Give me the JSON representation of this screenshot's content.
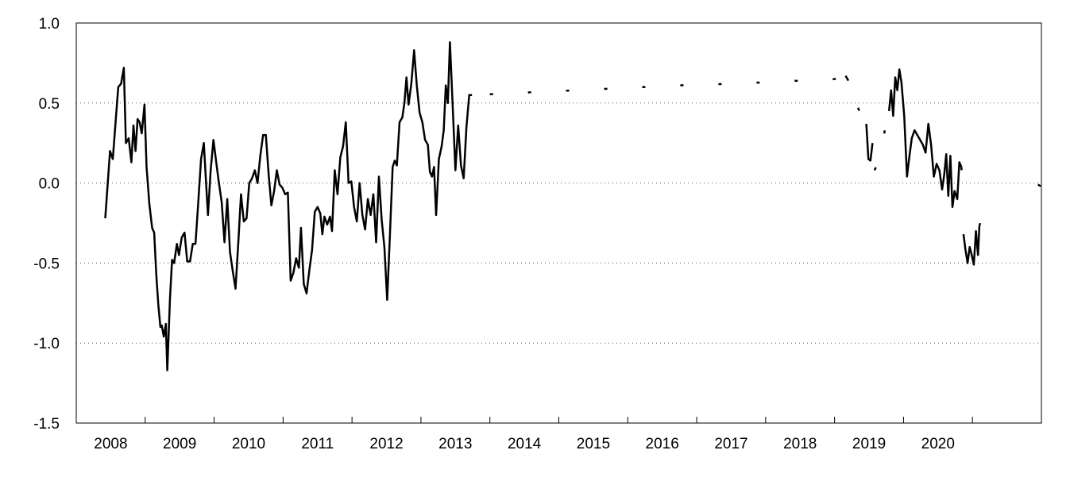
{
  "chart_data": {
    "type": "line",
    "title": "",
    "xlabel": "",
    "ylabel": "",
    "ylim": [
      -1.5,
      1.0
    ],
    "y_ticks": [
      "1.0",
      "0.5",
      "0.0",
      "-0.5",
      "-1.0",
      "-1.5"
    ],
    "y_tick_values": [
      1.0,
      0.5,
      0.0,
      -0.5,
      -1.0,
      -1.5
    ],
    "x_categories": [
      "2008",
      "2009",
      "2010",
      "2011",
      "2012",
      "2013",
      "2014",
      "2015",
      "2016",
      "2017",
      "2018",
      "2019",
      "2020"
    ],
    "xlim": [
      2007.5,
      2021.5
    ],
    "grid": "horizontal-dotted",
    "line_color": "#000000",
    "series": [
      {
        "style": "solid",
        "points": [
          [
            2007.92,
            -0.22
          ],
          [
            2007.99,
            0.2
          ],
          [
            2008.03,
            0.15
          ],
          [
            2008.07,
            0.38
          ],
          [
            2008.11,
            0.6
          ],
          [
            2008.15,
            0.62
          ],
          [
            2008.19,
            0.72
          ],
          [
            2008.22,
            0.25
          ],
          [
            2008.26,
            0.28
          ],
          [
            2008.3,
            0.13
          ],
          [
            2008.33,
            0.36
          ],
          [
            2008.36,
            0.2
          ],
          [
            2008.39,
            0.4
          ],
          [
            2008.42,
            0.38
          ],
          [
            2008.45,
            0.31
          ],
          [
            2008.49,
            0.49
          ],
          [
            2008.52,
            0.1
          ],
          [
            2008.56,
            -0.13
          ],
          [
            2008.6,
            -0.28
          ],
          [
            2008.63,
            -0.31
          ],
          [
            2008.66,
            -0.57
          ],
          [
            2008.69,
            -0.76
          ],
          [
            2008.72,
            -0.9
          ],
          [
            2008.74,
            -0.89
          ],
          [
            2008.77,
            -0.96
          ],
          [
            2008.8,
            -0.88
          ],
          [
            2008.82,
            -1.17
          ],
          [
            2008.86,
            -0.72
          ],
          [
            2008.89,
            -0.48
          ],
          [
            2008.92,
            -0.5
          ],
          [
            2008.96,
            -0.38
          ],
          [
            2008.99,
            -0.45
          ],
          [
            2009.03,
            -0.34
          ],
          [
            2009.07,
            -0.31
          ],
          [
            2009.11,
            -0.49
          ],
          [
            2009.15,
            -0.49
          ],
          [
            2009.19,
            -0.38
          ],
          [
            2009.23,
            -0.38
          ],
          [
            2009.27,
            -0.12
          ],
          [
            2009.31,
            0.15
          ],
          [
            2009.35,
            0.25
          ],
          [
            2009.38,
            0.02
          ],
          [
            2009.41,
            -0.2
          ],
          [
            2009.45,
            0.08
          ],
          [
            2009.49,
            0.27
          ],
          [
            2009.53,
            0.13
          ],
          [
            2009.57,
            0.0
          ],
          [
            2009.61,
            -0.12
          ],
          [
            2009.65,
            -0.37
          ],
          [
            2009.69,
            -0.1
          ],
          [
            2009.73,
            -0.43
          ],
          [
            2009.77,
            -0.55
          ],
          [
            2009.81,
            -0.66
          ],
          [
            2009.85,
            -0.38
          ],
          [
            2009.89,
            -0.07
          ],
          [
            2009.93,
            -0.24
          ],
          [
            2009.97,
            -0.22
          ],
          [
            2010.01,
            0.0
          ],
          [
            2010.05,
            0.03
          ],
          [
            2010.09,
            0.08
          ],
          [
            2010.13,
            0.0
          ],
          [
            2010.17,
            0.17
          ],
          [
            2010.21,
            0.3
          ],
          [
            2010.25,
            0.3
          ],
          [
            2010.29,
            0.06
          ],
          [
            2010.33,
            -0.14
          ],
          [
            2010.37,
            -0.05
          ],
          [
            2010.41,
            0.08
          ],
          [
            2010.45,
            -0.01
          ],
          [
            2010.49,
            -0.03
          ],
          [
            2010.53,
            -0.07
          ],
          [
            2010.57,
            -0.06
          ],
          [
            2010.61,
            -0.61
          ],
          [
            2010.65,
            -0.56
          ],
          [
            2010.69,
            -0.47
          ],
          [
            2010.73,
            -0.53
          ],
          [
            2010.76,
            -0.28
          ],
          [
            2010.8,
            -0.63
          ],
          [
            2010.84,
            -0.69
          ],
          [
            2010.88,
            -0.55
          ],
          [
            2010.92,
            -0.42
          ],
          [
            2010.96,
            -0.18
          ],
          [
            2011.0,
            -0.15
          ],
          [
            2011.04,
            -0.19
          ],
          [
            2011.07,
            -0.32
          ],
          [
            2011.1,
            -0.21
          ],
          [
            2011.14,
            -0.26
          ],
          [
            2011.18,
            -0.21
          ],
          [
            2011.21,
            -0.3
          ],
          [
            2011.25,
            0.08
          ],
          [
            2011.29,
            -0.07
          ],
          [
            2011.33,
            0.16
          ],
          [
            2011.37,
            0.23
          ],
          [
            2011.41,
            0.38
          ],
          [
            2011.45,
            0.0
          ],
          [
            2011.49,
            0.01
          ],
          [
            2011.53,
            -0.15
          ],
          [
            2011.57,
            -0.24
          ],
          [
            2011.61,
            0.0
          ],
          [
            2011.65,
            -0.2
          ],
          [
            2011.69,
            -0.29
          ],
          [
            2011.73,
            -0.1
          ],
          [
            2011.77,
            -0.2
          ],
          [
            2011.81,
            -0.07
          ],
          [
            2011.85,
            -0.37
          ],
          [
            2011.89,
            0.04
          ],
          [
            2011.93,
            -0.23
          ],
          [
            2011.97,
            -0.4
          ],
          [
            2012.01,
            -0.73
          ],
          [
            2012.05,
            -0.32
          ],
          [
            2012.09,
            0.1
          ],
          [
            2012.12,
            0.14
          ],
          [
            2012.15,
            0.11
          ],
          [
            2012.19,
            0.38
          ],
          [
            2012.23,
            0.41
          ],
          [
            2012.26,
            0.5
          ],
          [
            2012.29,
            0.66
          ],
          [
            2012.32,
            0.49
          ],
          [
            2012.36,
            0.62
          ],
          [
            2012.4,
            0.83
          ],
          [
            2012.44,
            0.61
          ],
          [
            2012.48,
            0.44
          ],
          [
            2012.52,
            0.38
          ],
          [
            2012.56,
            0.27
          ],
          [
            2012.6,
            0.24
          ],
          [
            2012.63,
            0.07
          ],
          [
            2012.66,
            0.04
          ],
          [
            2012.69,
            0.1
          ],
          [
            2012.72,
            -0.2
          ],
          [
            2012.76,
            0.15
          ],
          [
            2012.8,
            0.23
          ],
          [
            2012.83,
            0.33
          ],
          [
            2012.86,
            0.61
          ],
          [
            2012.89,
            0.5
          ],
          [
            2012.92,
            0.88
          ],
          [
            2012.96,
            0.48
          ],
          [
            2013.0,
            0.08
          ],
          [
            2013.04,
            0.36
          ],
          [
            2013.08,
            0.11
          ],
          [
            2013.12,
            0.03
          ],
          [
            2013.16,
            0.35
          ],
          [
            2013.2,
            0.55
          ],
          [
            2013.24,
            0.55
          ]
        ]
      },
      {
        "style": "dashed",
        "points": [
          [
            2013.5,
            0.555
          ],
          [
            2014.0,
            0.565
          ],
          [
            2014.5,
            0.575
          ],
          [
            2015.0,
            0.585
          ],
          [
            2015.5,
            0.595
          ],
          [
            2016.0,
            0.605
          ],
          [
            2016.5,
            0.615
          ],
          [
            2017.0,
            0.62
          ],
          [
            2017.5,
            0.63
          ],
          [
            2018.0,
            0.64
          ],
          [
            2018.5,
            0.65
          ],
          [
            2018.66,
            0.67
          ]
        ]
      },
      {
        "style": "solid",
        "points": [
          [
            2018.66,
            0.67
          ],
          [
            2018.7,
            0.64
          ]
        ]
      },
      {
        "style": "dashed",
        "points": [
          [
            2018.84,
            0.47
          ],
          [
            2018.88,
            0.43
          ],
          [
            2018.92,
            0.4
          ],
          [
            2018.96,
            0.37
          ]
        ]
      },
      {
        "style": "solid",
        "points": [
          [
            2018.96,
            0.37
          ],
          [
            2018.99,
            0.15
          ],
          [
            2019.02,
            0.14
          ],
          [
            2019.05,
            0.25
          ]
        ]
      },
      {
        "style": "dashed",
        "points": [
          [
            2019.08,
            0.08
          ],
          [
            2019.12,
            0.12
          ],
          [
            2019.16,
            0.18
          ],
          [
            2019.2,
            0.26
          ],
          [
            2019.24,
            0.36
          ],
          [
            2019.27,
            0.45
          ]
        ]
      },
      {
        "style": "solid",
        "points": [
          [
            2019.29,
            0.45
          ],
          [
            2019.32,
            0.58
          ],
          [
            2019.35,
            0.42
          ],
          [
            2019.38,
            0.66
          ],
          [
            2019.41,
            0.58
          ],
          [
            2019.44,
            0.71
          ],
          [
            2019.47,
            0.63
          ],
          [
            2019.51,
            0.42
          ],
          [
            2019.55,
            0.04
          ],
          [
            2019.58,
            0.15
          ],
          [
            2019.62,
            0.28
          ],
          [
            2019.66,
            0.33
          ],
          [
            2019.7,
            0.3
          ],
          [
            2019.74,
            0.27
          ],
          [
            2019.78,
            0.24
          ],
          [
            2019.82,
            0.19
          ],
          [
            2019.86,
            0.37
          ],
          [
            2019.9,
            0.24
          ],
          [
            2019.94,
            0.04
          ],
          [
            2019.98,
            0.12
          ],
          [
            2020.02,
            0.08
          ],
          [
            2020.06,
            -0.04
          ],
          [
            2020.09,
            0.05
          ],
          [
            2020.12,
            0.18
          ],
          [
            2020.15,
            -0.08
          ],
          [
            2020.18,
            0.17
          ],
          [
            2020.21,
            -0.15
          ],
          [
            2020.24,
            -0.05
          ],
          [
            2020.28,
            -0.1
          ],
          [
            2020.31,
            0.13
          ],
          [
            2020.34,
            0.1
          ]
        ]
      },
      {
        "style": "dashed",
        "points": [
          [
            2020.34,
            0.1
          ],
          [
            2020.37,
            -0.12
          ]
        ]
      },
      {
        "style": "solid",
        "points": [
          [
            2020.37,
            -0.32
          ],
          [
            2020.4,
            -0.42
          ],
          [
            2020.43,
            -0.5
          ],
          [
            2020.46,
            -0.4
          ],
          [
            2020.49,
            -0.45
          ],
          [
            2020.52,
            -0.51
          ],
          [
            2020.55,
            -0.3
          ],
          [
            2020.58,
            -0.45
          ],
          [
            2020.6,
            -0.27
          ]
        ]
      },
      {
        "style": "dashed",
        "points": [
          [
            2020.6,
            -0.27
          ],
          [
            2020.64,
            -0.2
          ],
          [
            2020.68,
            -0.14
          ],
          [
            2020.74,
            -0.1
          ],
          [
            2020.82,
            -0.08
          ]
        ]
      },
      {
        "style": "dashed",
        "points": [
          [
            2021.45,
            -0.01
          ],
          [
            2021.49,
            -0.02
          ]
        ]
      }
    ]
  }
}
